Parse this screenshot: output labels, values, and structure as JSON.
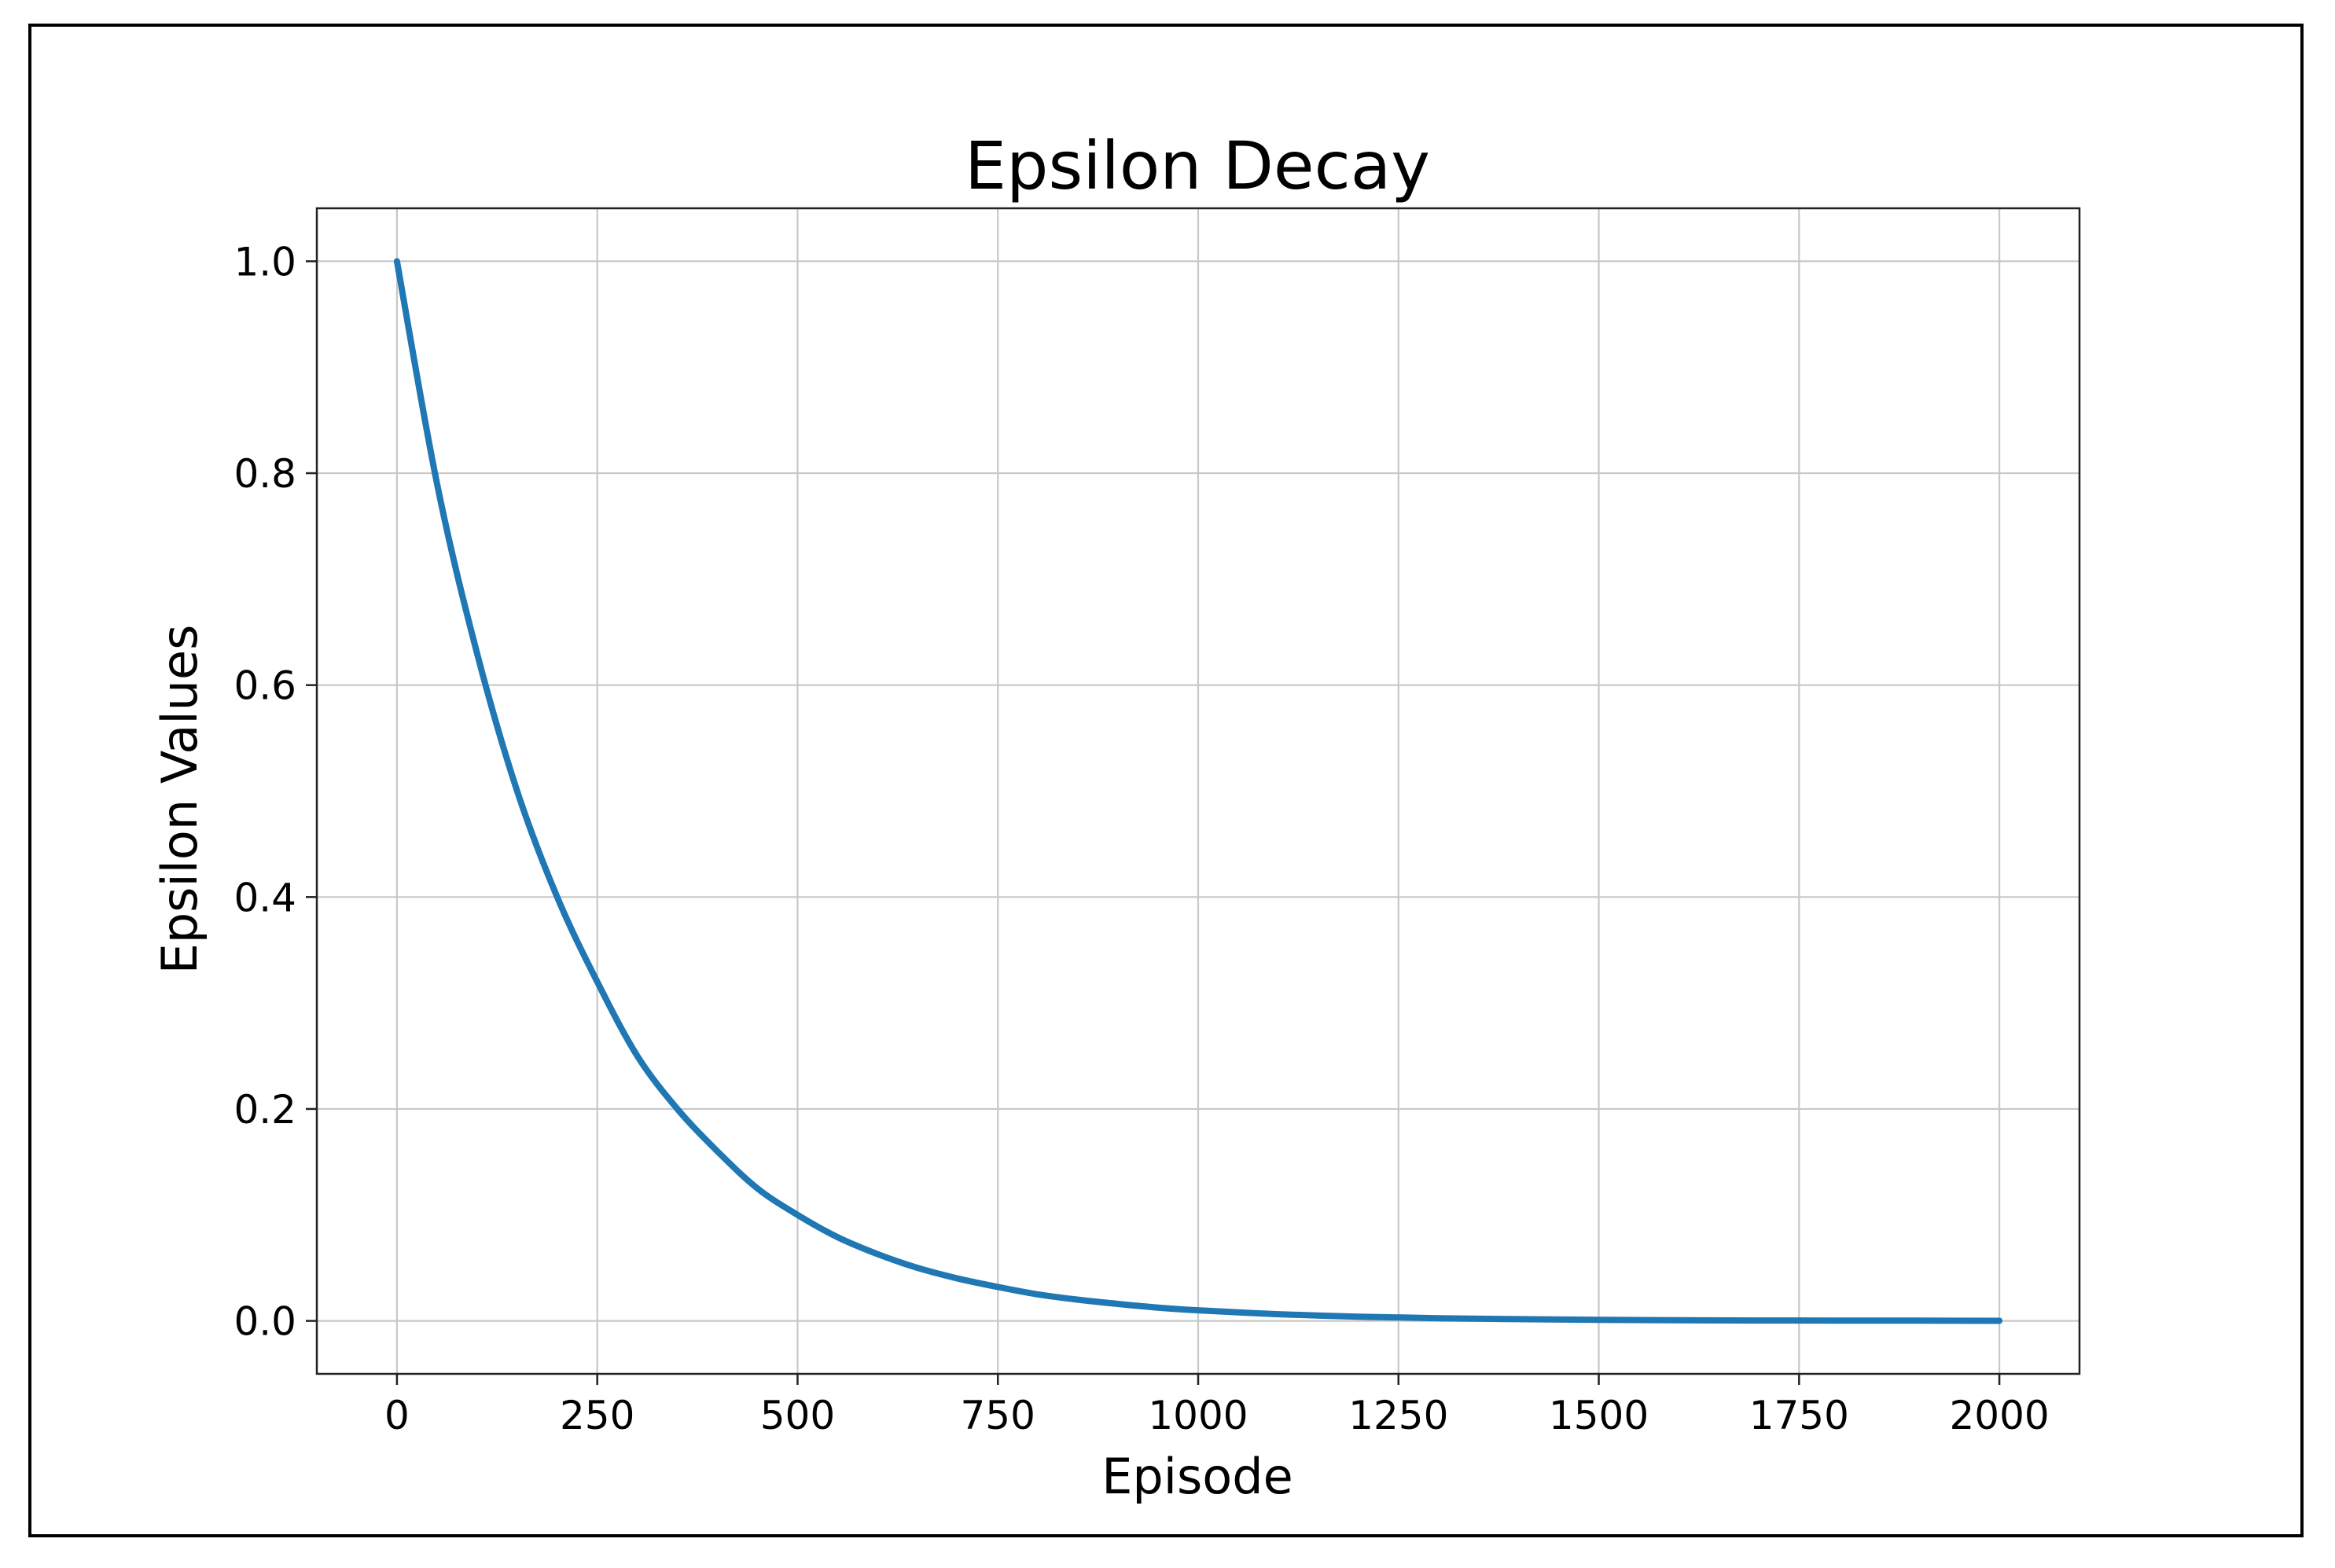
{
  "chart_data": {
    "type": "line",
    "title": "Epsilon Decay",
    "xlabel": "Episode",
    "ylabel": "Epsilon Values",
    "xlim": [
      -100,
      2100
    ],
    "ylim": [
      -0.05,
      1.05
    ],
    "xticks": [
      0,
      250,
      500,
      750,
      1000,
      1250,
      1500,
      1750,
      2000
    ],
    "xtick_labels": [
      "0",
      "250",
      "500",
      "750",
      "1000",
      "1250",
      "1500",
      "1750",
      "2000"
    ],
    "yticks": [
      0.0,
      0.2,
      0.4,
      0.6,
      0.8,
      1.0
    ],
    "ytick_labels": [
      "0.0",
      "0.2",
      "0.4",
      "0.6",
      "0.8",
      "1.0"
    ],
    "grid": true,
    "legend": "none",
    "series": [
      {
        "color": "#1f77b4",
        "x": [
          0,
          50,
          100,
          150,
          200,
          250,
          300,
          350,
          400,
          450,
          500,
          550,
          600,
          650,
          700,
          750,
          800,
          850,
          900,
          950,
          1000,
          1100,
          1200,
          1300,
          1400,
          1500,
          1600,
          1700,
          1800,
          1900,
          2000
        ],
        "y": [
          1.0,
          0.79,
          0.63,
          0.5,
          0.4,
          0.32,
          0.25,
          0.2,
          0.16,
          0.125,
          0.1,
          0.079,
          0.063,
          0.05,
          0.04,
          0.032,
          0.025,
          0.02,
          0.016,
          0.0125,
          0.01,
          0.0063,
          0.004,
          0.0025,
          0.0016,
          0.001,
          0.0006,
          0.0004,
          0.0003,
          0.0002,
          0.0001
        ]
      }
    ]
  }
}
